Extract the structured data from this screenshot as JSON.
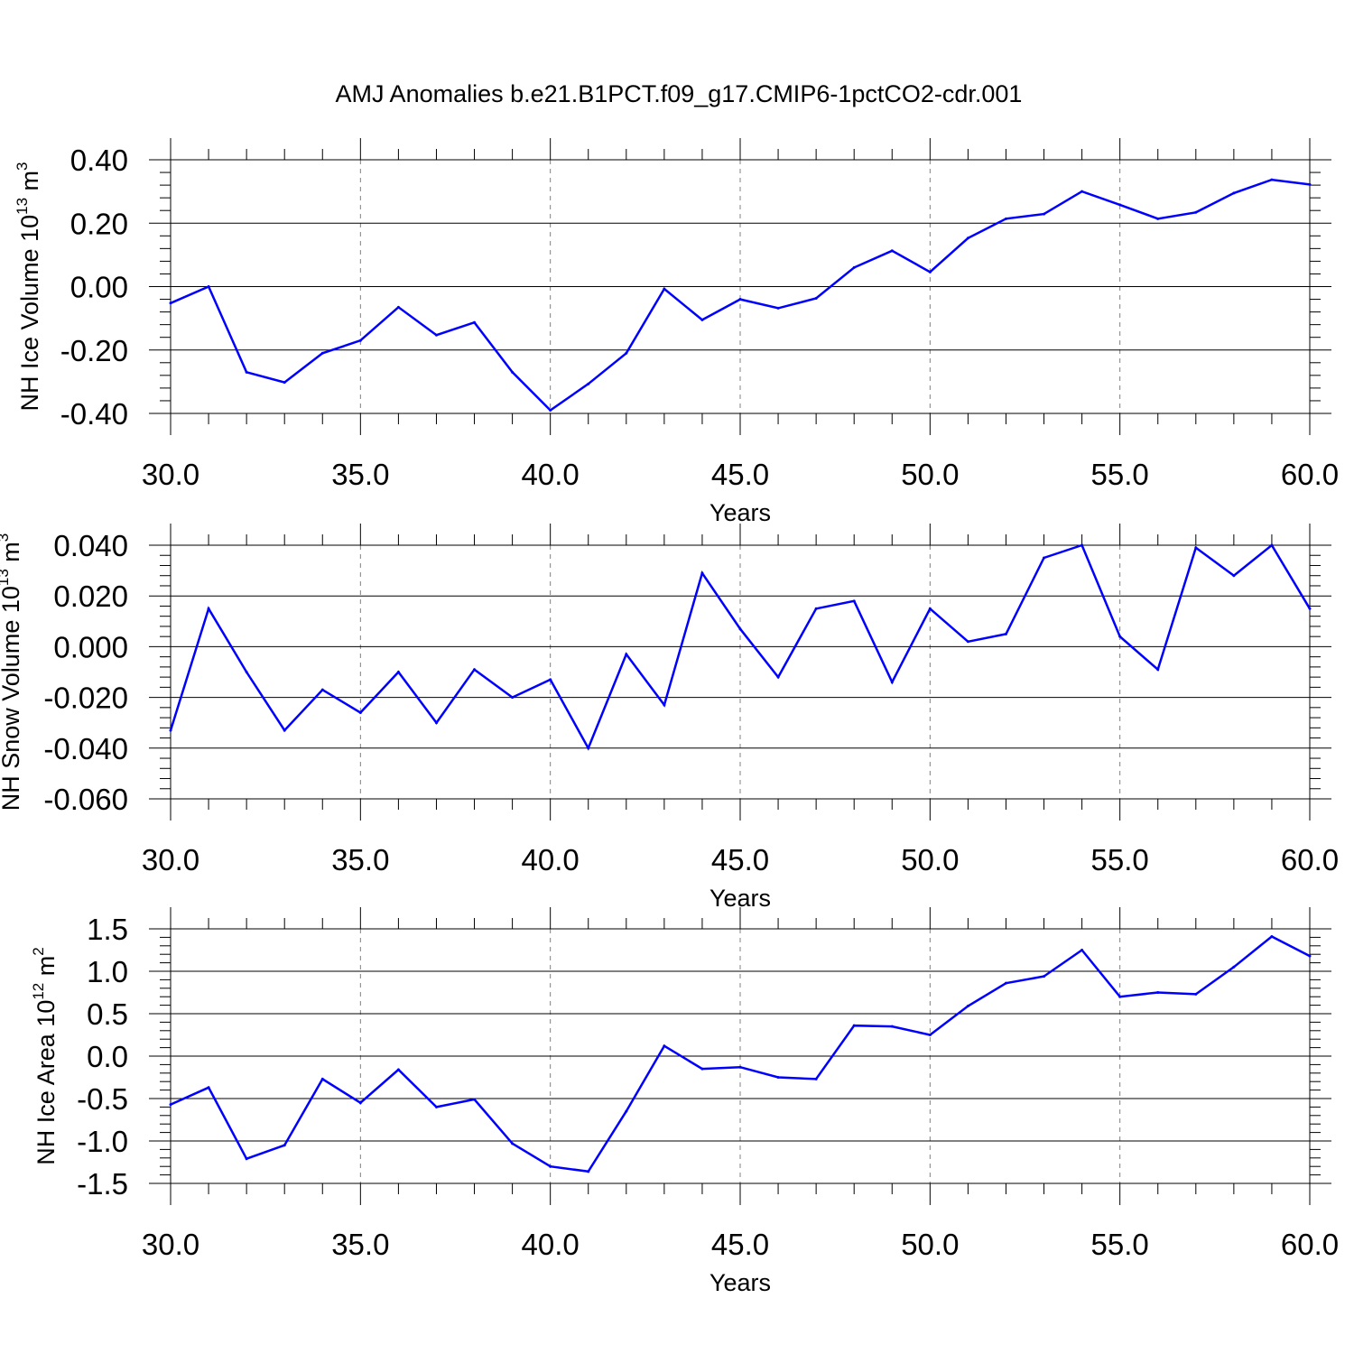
{
  "title": "AMJ Anomalies b.e21.B1PCT.f09_g17.CMIP6-1pctCO2-cdr.001",
  "colors": {
    "series": "#0000ff",
    "axes": "#000000",
    "grid": "#808080"
  },
  "chart_data": [
    {
      "type": "line",
      "title": "",
      "xlabel": "Years",
      "ylabel": {
        "text": "NH Ice Volume 10",
        "sup": "13",
        "unit": " m",
        "unit_sup": "3"
      },
      "xlim": [
        30,
        60
      ],
      "ylim": [
        -0.4,
        0.4
      ],
      "x_ticks": [
        "30.0",
        "35.0",
        "40.0",
        "45.0",
        "50.0",
        "55.0",
        "60.0"
      ],
      "y_ticks": [
        "-0.40",
        "-0.20",
        "0.00",
        "0.20",
        "0.40"
      ],
      "y_tick_values": [
        -0.4,
        -0.2,
        0.0,
        0.2,
        0.4
      ],
      "grid": "vertical dashed at major x ticks",
      "x": [
        30,
        31,
        32,
        33,
        34,
        35,
        36,
        37,
        38,
        39,
        40,
        41,
        42,
        43,
        44,
        45,
        46,
        47,
        48,
        49,
        50,
        51,
        52,
        53,
        54,
        55,
        56,
        57,
        58,
        59,
        60
      ],
      "series": [
        {
          "values": [
            -0.052,
            0.0,
            -0.27,
            -0.302,
            -0.21,
            -0.17,
            -0.065,
            -0.153,
            -0.113,
            -0.27,
            -0.39,
            -0.307,
            -0.21,
            -0.007,
            -0.105,
            -0.04,
            -0.068,
            -0.037,
            0.06,
            0.113,
            0.046,
            0.153,
            0.214,
            0.229,
            0.3,
            0.258,
            0.214,
            0.234,
            0.295,
            0.337,
            0.322
          ]
        }
      ]
    },
    {
      "type": "line",
      "title": "",
      "xlabel": "Years",
      "ylabel": {
        "text": "NH Snow Volume 10",
        "sup": "13",
        "unit": " m",
        "unit_sup": "3"
      },
      "xlim": [
        30,
        60
      ],
      "ylim": [
        -0.06,
        0.04
      ],
      "x_ticks": [
        "30.0",
        "35.0",
        "40.0",
        "45.0",
        "50.0",
        "55.0",
        "60.0"
      ],
      "y_ticks": [
        "-0.060",
        "-0.040",
        "-0.020",
        "0.000",
        "0.020",
        "0.040"
      ],
      "y_tick_values": [
        -0.06,
        -0.04,
        -0.02,
        0.0,
        0.02,
        0.04
      ],
      "grid": "vertical dashed at major x ticks",
      "x": [
        30,
        31,
        32,
        33,
        34,
        35,
        36,
        37,
        38,
        39,
        40,
        41,
        42,
        43,
        44,
        45,
        46,
        47,
        48,
        49,
        50,
        51,
        52,
        53,
        54,
        55,
        56,
        57,
        58,
        59,
        60
      ],
      "series": [
        {
          "values": [
            -0.033,
            0.015,
            -0.01,
            -0.033,
            -0.017,
            -0.026,
            -0.01,
            -0.03,
            -0.009,
            -0.02,
            -0.013,
            -0.04,
            -0.003,
            -0.023,
            0.029,
            0.007,
            -0.012,
            0.015,
            0.018,
            -0.014,
            0.015,
            0.002,
            0.005,
            0.035,
            0.04,
            0.004,
            -0.009,
            0.039,
            0.028,
            0.04,
            0.015
          ]
        }
      ]
    },
    {
      "type": "line",
      "title": "",
      "xlabel": "Years",
      "ylabel": {
        "text": "NH Ice Area 10",
        "sup": "12",
        "unit": " m",
        "unit_sup": "2"
      },
      "xlim": [
        30,
        60
      ],
      "ylim": [
        -1.5,
        1.5
      ],
      "x_ticks": [
        "30.0",
        "35.0",
        "40.0",
        "45.0",
        "50.0",
        "55.0",
        "60.0"
      ],
      "y_ticks": [
        "-1.5",
        "-1.0",
        "-0.5",
        "0.0",
        "0.5",
        "1.0",
        "1.5"
      ],
      "y_tick_values": [
        -1.5,
        -1.0,
        -0.5,
        0.0,
        0.5,
        1.0,
        1.5
      ],
      "grid": "vertical dashed at major x ticks",
      "x": [
        30,
        31,
        32,
        33,
        34,
        35,
        36,
        37,
        38,
        39,
        40,
        41,
        42,
        43,
        44,
        45,
        46,
        47,
        48,
        49,
        50,
        51,
        52,
        53,
        54,
        55,
        56,
        57,
        58,
        59,
        60
      ],
      "series": [
        {
          "values": [
            -0.57,
            -0.37,
            -1.21,
            -1.05,
            -0.27,
            -0.55,
            -0.16,
            -0.6,
            -0.51,
            -1.03,
            -1.3,
            -1.36,
            -0.65,
            0.12,
            -0.15,
            -0.13,
            -0.25,
            -0.27,
            0.36,
            0.35,
            0.25,
            0.59,
            0.86,
            0.94,
            1.25,
            0.7,
            0.75,
            0.73,
            1.05,
            1.41,
            1.18
          ]
        }
      ]
    }
  ]
}
